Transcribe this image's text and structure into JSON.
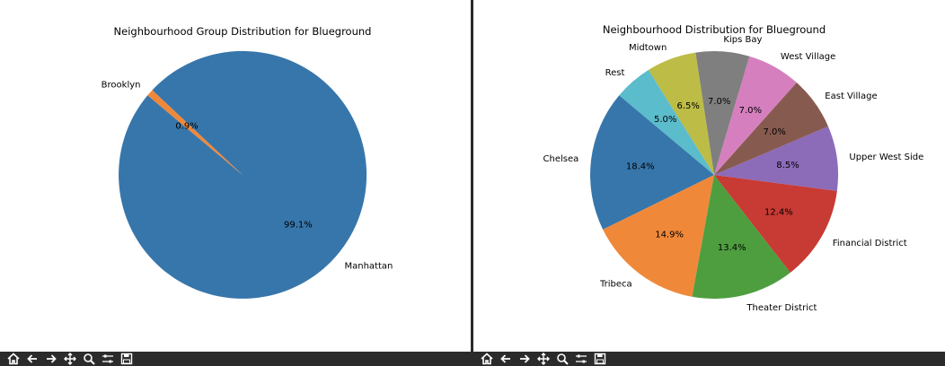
{
  "chart_data": [
    {
      "type": "pie",
      "title": "Neighbourhood Group Distribution for Blueground",
      "categories": [
        "Manhattan",
        "Brooklyn"
      ],
      "values": [
        99.1,
        0.9
      ],
      "labels": [
        "99.1%",
        "0.9%"
      ],
      "colors": [
        "#3776ab",
        "#f0883a"
      ]
    },
    {
      "type": "pie",
      "title": "Neighbourhood Distribution for Blueground",
      "categories": [
        "Chelsea",
        "Tribeca",
        "Theater District",
        "Financial District",
        "Upper West Side",
        "East Village",
        "West Village",
        "Kips Bay",
        "Midtown",
        "Rest"
      ],
      "values": [
        18.4,
        14.9,
        13.4,
        12.4,
        8.5,
        7.0,
        7.0,
        7.0,
        6.5,
        5.0
      ],
      "labels": [
        "18.4%",
        "14.9%",
        "13.4%",
        "12.4%",
        "8.5%",
        "7.0%",
        "7.0%",
        "7.0%",
        "6.5%",
        "5.0%"
      ],
      "colors": [
        "#3776ab",
        "#f0883a",
        "#4e9e3f",
        "#c83a34",
        "#8c6bb8",
        "#875a4f",
        "#d57fbf",
        "#7f7f7f",
        "#bcbc46",
        "#5bbccc"
      ]
    }
  ],
  "toolbar": {
    "icons": [
      "home-icon",
      "back-icon",
      "forward-icon",
      "pan-icon",
      "zoom-icon",
      "configure-icon",
      "save-icon"
    ]
  }
}
